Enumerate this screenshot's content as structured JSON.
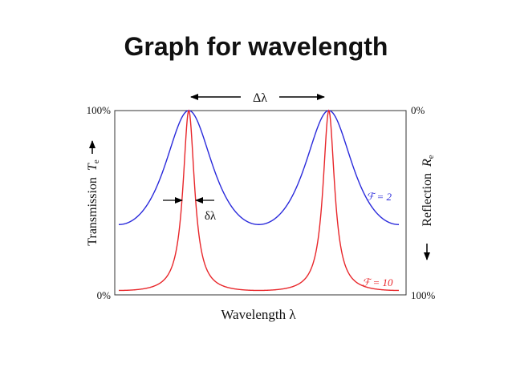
{
  "slide": {
    "title": "Graph for wavelength"
  },
  "chart_data": {
    "type": "line",
    "title": "",
    "xlabel": "Wavelength λ",
    "ylabel_left_prefix": "Transmission",
    "ylabel_left_symbol": "T",
    "ylabel_left_sub": "e",
    "ylabel_right_prefix": "Reflection",
    "ylabel_right_symbol": "R",
    "ylabel_right_sub": "e",
    "left_ticks": [
      "100%",
      "0%"
    ],
    "right_ticks": [
      "0%",
      "100%"
    ],
    "ylim": [
      0,
      1
    ],
    "xlim": [
      0,
      1
    ],
    "peak_positions": [
      0.25,
      0.75
    ],
    "annotations": {
      "fsr": "Δλ",
      "fwhm": "δλ"
    },
    "series": [
      {
        "name": "ℱ = 2",
        "finesse": 2,
        "color": "#2a2adb"
      },
      {
        "name": "ℱ = 10",
        "finesse": 10,
        "color": "#e8262a"
      }
    ]
  }
}
